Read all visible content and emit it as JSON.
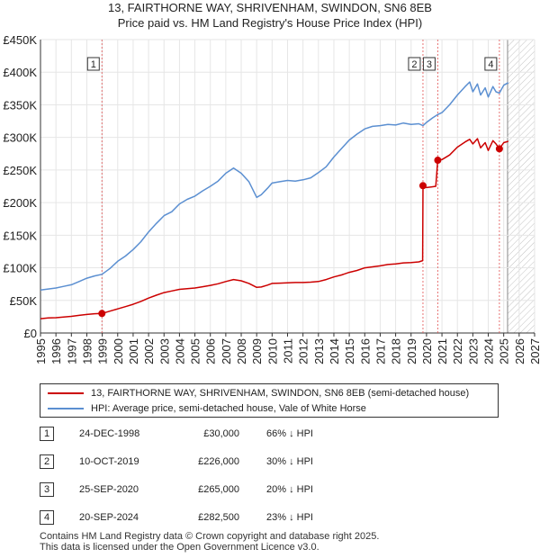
{
  "title_line1": "13, FAIRTHORNE WAY, SHRIVENHAM, SWINDON, SN6 8EB",
  "title_line2": "Price paid vs. HM Land Registry's House Price Index (HPI)",
  "colors": {
    "property": "#cc0000",
    "hpi": "#5b8fd1",
    "marker_line": "#e05050",
    "hatch": "#999999",
    "grid": "#e6e6e6",
    "plot_bg": "#ffffff"
  },
  "legend": {
    "property_label": "13, FAIRTHORNE WAY, SHRIVENHAM, SWINDON, SN6 8EB (semi-detached house)",
    "hpi_label": "HPI: Average price, semi-detached house, Vale of White Horse"
  },
  "sales": [
    {
      "id": "1",
      "date": "24-DEC-1998",
      "price": "£30,000",
      "hpi_delta": "66% ↓ HPI"
    },
    {
      "id": "2",
      "date": "10-OCT-2019",
      "price": "£226,000",
      "hpi_delta": "30% ↓ HPI"
    },
    {
      "id": "3",
      "date": "25-SEP-2020",
      "price": "£265,000",
      "hpi_delta": "20% ↓ HPI"
    },
    {
      "id": "4",
      "date": "20-SEP-2024",
      "price": "£282,500",
      "hpi_delta": "23% ↓ HPI"
    }
  ],
  "footer_line1": "Contains HM Land Registry data © Crown copyright and database right 2025.",
  "footer_line2": "This data is licensed under the Open Government Licence v3.0.",
  "chart_data": {
    "type": "line",
    "title": "13, FAIRTHORNE WAY, SHRIVENHAM, SWINDON, SN6 8EB",
    "subtitle": "Price paid vs. HM Land Registry's House Price Index (HPI)",
    "xlabel": "",
    "ylabel": "",
    "xlim": [
      1995,
      2027
    ],
    "ylim": [
      0,
      450000
    ],
    "x_ticks": [
      1995,
      1996,
      1997,
      1998,
      1999,
      2000,
      2001,
      2002,
      2003,
      2004,
      2005,
      2006,
      2007,
      2008,
      2009,
      2010,
      2011,
      2012,
      2013,
      2014,
      2015,
      2016,
      2017,
      2018,
      2019,
      2020,
      2021,
      2022,
      2023,
      2024,
      2025,
      2026,
      2027
    ],
    "x_tick_labels": [
      "1995",
      "1996",
      "1997",
      "1998",
      "1999",
      "2000",
      "2001",
      "2002",
      "2003",
      "2004",
      "2005",
      "2006",
      "2007",
      "2008",
      "2009",
      "2010",
      "2011",
      "2012",
      "2013",
      "2014",
      "2015",
      "2016",
      "2017",
      "2018",
      "2019",
      "2020",
      "2021",
      "2022",
      "2023",
      "2024",
      "2025",
      "2026",
      "2027"
    ],
    "y_ticks": [
      0,
      50000,
      100000,
      150000,
      200000,
      250000,
      300000,
      350000,
      400000,
      450000
    ],
    "y_tick_labels": [
      "£0",
      "£50K",
      "£100K",
      "£150K",
      "£200K",
      "£250K",
      "£300K",
      "£350K",
      "£400K",
      "£450K"
    ],
    "grid": true,
    "forecast_hatch_from": 2025.25,
    "series": [
      {
        "name": "13, FAIRTHORNE WAY, SHRIVENHAM, SWINDON, SN6 8EB (semi-detached house)",
        "color": "#cc0000",
        "x": [
          1995.0,
          1995.5,
          1996.0,
          1996.5,
          1997.0,
          1997.5,
          1998.0,
          1998.5,
          1998.98,
          1999.5,
          2000.0,
          2000.5,
          2001.0,
          2001.5,
          2002.0,
          2002.5,
          2003.0,
          2003.5,
          2004.0,
          2004.5,
          2005.0,
          2005.5,
          2006.0,
          2006.5,
          2007.0,
          2007.5,
          2008.0,
          2008.5,
          2009.0,
          2009.3,
          2009.7,
          2010.0,
          2010.5,
          2011.0,
          2011.5,
          2012.0,
          2012.5,
          2013.0,
          2013.5,
          2014.0,
          2014.5,
          2015.0,
          2015.5,
          2016.0,
          2016.5,
          2017.0,
          2017.5,
          2018.0,
          2018.5,
          2019.0,
          2019.5,
          2019.75,
          2019.77,
          2020.0,
          2020.3,
          2020.6,
          2020.73,
          2021.0,
          2021.5,
          2022.0,
          2022.5,
          2022.8,
          2023.0,
          2023.3,
          2023.5,
          2023.8,
          2024.0,
          2024.3,
          2024.5,
          2024.72,
          2025.0,
          2025.3
        ],
        "y": [
          22000,
          23000,
          23500,
          24500,
          25500,
          27000,
          28500,
          29500,
          30000,
          33500,
          37000,
          40500,
          44000,
          48500,
          53500,
          58000,
          62000,
          64500,
          67000,
          68000,
          69000,
          71000,
          73000,
          75500,
          79000,
          82000,
          80000,
          76000,
          70000,
          70500,
          73500,
          76000,
          76500,
          77000,
          77500,
          77500,
          78000,
          79000,
          82000,
          86000,
          89000,
          93000,
          96000,
          100000,
          101500,
          103000,
          105000,
          106000,
          107500,
          108000,
          109000,
          111000,
          226000,
          223000,
          224000,
          225000,
          265000,
          266000,
          273000,
          285000,
          293000,
          297000,
          290000,
          298000,
          284000,
          292000,
          280000,
          295000,
          290000,
          282500,
          292000,
          294000
        ]
      },
      {
        "name": "HPI: Average price, semi-detached house, Vale of White Horse",
        "color": "#5b8fd1",
        "x": [
          1995.0,
          1995.5,
          1996.0,
          1996.5,
          1997.0,
          1997.5,
          1998.0,
          1998.5,
          1998.98,
          1999.5,
          2000.0,
          2000.5,
          2001.0,
          2001.5,
          2002.0,
          2002.5,
          2003.0,
          2003.5,
          2004.0,
          2004.5,
          2005.0,
          2005.5,
          2006.0,
          2006.5,
          2007.0,
          2007.5,
          2008.0,
          2008.5,
          2009.0,
          2009.3,
          2009.7,
          2010.0,
          2010.5,
          2011.0,
          2011.5,
          2012.0,
          2012.5,
          2013.0,
          2013.5,
          2014.0,
          2014.5,
          2015.0,
          2015.5,
          2016.0,
          2016.5,
          2017.0,
          2017.5,
          2018.0,
          2018.5,
          2019.0,
          2019.5,
          2019.77,
          2020.0,
          2020.4,
          2020.73,
          2021.0,
          2021.5,
          2022.0,
          2022.5,
          2022.8,
          2023.0,
          2023.3,
          2023.5,
          2023.8,
          2024.0,
          2024.3,
          2024.5,
          2024.72,
          2025.0,
          2025.3
        ],
        "y": [
          66000,
          67500,
          69000,
          71500,
          74000,
          79000,
          84000,
          87500,
          90000,
          99000,
          110000,
          118000,
          128000,
          140000,
          155000,
          168000,
          180000,
          186000,
          198000,
          205000,
          210000,
          218000,
          225000,
          233000,
          245000,
          253000,
          245000,
          232000,
          208000,
          212000,
          222000,
          230000,
          232000,
          234000,
          233000,
          235000,
          238000,
          246000,
          255000,
          270000,
          283000,
          296000,
          305000,
          313000,
          317000,
          318000,
          320000,
          319000,
          322000,
          320000,
          321000,
          318000,
          323000,
          330000,
          335000,
          338000,
          350000,
          365000,
          378000,
          385000,
          370000,
          382000,
          365000,
          376000,
          362000,
          378000,
          370000,
          368000,
          380000,
          384000
        ]
      }
    ],
    "annotations": [
      {
        "label": "1",
        "x": 1998.98,
        "y": 30000
      },
      {
        "label": "2",
        "x": 2019.77,
        "y": 226000
      },
      {
        "label": "3",
        "x": 2020.73,
        "y": 265000
      },
      {
        "label": "4",
        "x": 2024.72,
        "y": 282500
      }
    ]
  }
}
